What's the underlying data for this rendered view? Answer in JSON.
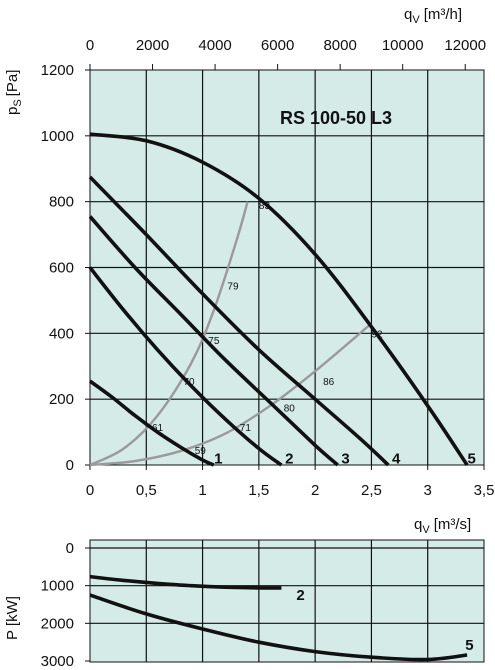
{
  "chart_data": [
    {
      "type": "line",
      "title": "RS  100-50  L3",
      "ylabel_main": "p",
      "ylabel_sub": "S",
      "ylabel_unit": "[Pa]",
      "xlabel_main": "q",
      "xlabel_sub": "V",
      "xlabel_unit": "[m³/s]",
      "xlabel_top_main": "q",
      "xlabel_top_sub": "V",
      "xlabel_top_unit": "[m³/h]",
      "xlim": [
        0,
        3.5
      ],
      "ylim": [
        0,
        1200
      ],
      "xticks": [
        0,
        0.5,
        1,
        1.5,
        2,
        2.5,
        3,
        3.5
      ],
      "xtick_labels": [
        "0",
        "0,5",
        "1",
        "1,5",
        "2",
        "2,5",
        "3",
        "3,5"
      ],
      "yticks": [
        0,
        200,
        400,
        600,
        800,
        1000,
        1200
      ],
      "ytick_labels": [
        "0",
        "200",
        "400",
        "600",
        "800",
        "1000",
        "1200"
      ],
      "top_xticks_m3h": [
        0,
        2000,
        4000,
        6000,
        8000,
        10000,
        12000
      ],
      "top_xtick_labels": [
        "0",
        "2000",
        "4000",
        "6000",
        "8000",
        "10000",
        "12000"
      ],
      "grid": true,
      "series": [
        {
          "name": "1",
          "x": [
            0,
            0.2,
            0.4,
            0.6,
            0.8,
            1.0,
            1.1
          ],
          "y": [
            255,
            205,
            150,
            100,
            55,
            15,
            0
          ]
        },
        {
          "name": "2",
          "x": [
            0,
            0.3,
            0.6,
            0.9,
            1.2,
            1.5,
            1.7
          ],
          "y": [
            600,
            470,
            350,
            240,
            140,
            50,
            0
          ]
        },
        {
          "name": "3",
          "x": [
            0,
            0.4,
            0.8,
            1.2,
            1.6,
            2.0,
            2.2
          ],
          "y": [
            755,
            600,
            460,
            320,
            190,
            60,
            0
          ]
        },
        {
          "name": "4",
          "x": [
            0,
            0.5,
            1.0,
            1.5,
            2.0,
            2.4,
            2.65
          ],
          "y": [
            875,
            700,
            520,
            350,
            200,
            80,
            0
          ]
        },
        {
          "name": "5",
          "x": [
            0,
            0.5,
            1.0,
            1.5,
            2.0,
            2.5,
            3.0,
            3.35
          ],
          "y": [
            1005,
            985,
            920,
            810,
            640,
            420,
            180,
            0
          ]
        }
      ],
      "efficiency_lines": [
        {
          "x": [
            0,
            0.4,
            0.8,
            1.2,
            1.6,
            2.0,
            2.5
          ],
          "y": [
            0,
            12,
            42,
            95,
            180,
            285,
            430
          ]
        },
        {
          "x": [
            0,
            0.3,
            0.6,
            0.9,
            1.1,
            1.3,
            1.4
          ],
          "y": [
            0,
            50,
            150,
            310,
            470,
            680,
            800
          ]
        }
      ],
      "point_labels": [
        {
          "text": "83",
          "x": 1.55,
          "y": 790
        },
        {
          "text": "79",
          "x": 1.27,
          "y": 545
        },
        {
          "text": "75",
          "x": 1.1,
          "y": 380
        },
        {
          "text": "70",
          "x": 0.88,
          "y": 255
        },
        {
          "text": "61",
          "x": 0.6,
          "y": 115
        },
        {
          "text": "59",
          "x": 0.98,
          "y": 45
        },
        {
          "text": "71",
          "x": 1.38,
          "y": 115
        },
        {
          "text": "80",
          "x": 1.77,
          "y": 175
        },
        {
          "text": "86",
          "x": 2.12,
          "y": 255
        },
        {
          "text": "92",
          "x": 2.55,
          "y": 400
        }
      ],
      "curve_end_labels": [
        {
          "text": "1",
          "x": 1.14,
          "y": 20
        },
        {
          "text": "2",
          "x": 1.77,
          "y": 20
        },
        {
          "text": "3",
          "x": 2.27,
          "y": 20
        },
        {
          "text": "4",
          "x": 2.72,
          "y": 20
        },
        {
          "text": "5",
          "x": 3.39,
          "y": 20
        }
      ]
    },
    {
      "type": "line",
      "ylabel": "P  [kW]",
      "ylim": [
        0,
        3000
      ],
      "yticks": [
        0,
        1000,
        2000,
        3000
      ],
      "ytick_labels": [
        "0",
        "1000",
        "2000",
        "3000"
      ],
      "xlim": [
        0,
        3.5
      ],
      "grid": true,
      "series": [
        {
          "name": "2",
          "x": [
            0,
            0.3,
            0.6,
            0.9,
            1.2,
            1.5,
            1.7
          ],
          "y": [
            760,
            860,
            940,
            1000,
            1040,
            1060,
            1060
          ]
        },
        {
          "name": "5",
          "x": [
            0,
            0.5,
            1.0,
            1.5,
            2.0,
            2.5,
            3.0,
            3.35
          ],
          "y": [
            1250,
            1750,
            2150,
            2500,
            2750,
            2900,
            2960,
            2840
          ]
        }
      ],
      "curve_end_labels": [
        {
          "text": "2",
          "x": 1.87,
          "y": 1250
        },
        {
          "text": "5",
          "x": 3.37,
          "y": 2580
        }
      ]
    }
  ]
}
